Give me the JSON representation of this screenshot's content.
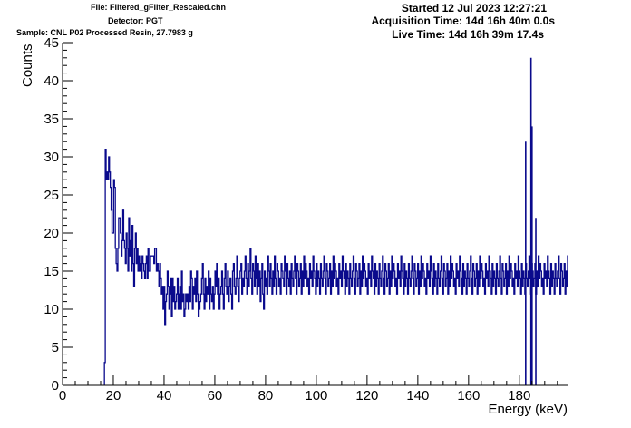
{
  "header": {
    "file": "File: Filtered_gFilter_Rescaled.chn",
    "detector": "Detector: PGT",
    "sample": "Sample: CNL P02 Processed Resin, 27.7983 g",
    "started": "Started 12 Jul 2023 12:27:21",
    "acquisition": "Acquisition Time: 14d 16h 40m 0.0s",
    "live": "Live Time: 14d 16h 39m 17.4s"
  },
  "colors": {
    "series": "#0a0a8c",
    "axis": "#000000",
    "background": "#ffffff"
  },
  "chart_data": {
    "type": "line",
    "style": "step-histogram",
    "title": "",
    "xlabel": "Energy (keV)",
    "ylabel": "Counts",
    "xlim": [
      0,
      199
    ],
    "ylim": [
      0,
      45
    ],
    "grid": false,
    "legend": "none",
    "xticks": [
      0,
      20,
      40,
      60,
      80,
      100,
      120,
      140,
      160,
      180
    ],
    "yticks": [
      0,
      5,
      10,
      15,
      20,
      25,
      30,
      35,
      40,
      45
    ],
    "bin_width_keV": 0.33,
    "x_start_keV": 16.5,
    "series": [
      {
        "values": [
          3,
          31,
          27,
          28,
          27,
          30,
          28,
          26,
          23,
          20,
          20,
          27,
          26,
          18,
          16,
          15,
          18,
          22,
          22,
          20,
          17,
          19,
          23,
          19,
          18,
          16,
          20,
          18,
          15,
          22,
          17,
          19,
          15,
          21,
          16,
          13,
          18,
          20,
          16,
          18,
          15,
          17,
          15,
          16,
          14,
          17,
          16,
          15,
          14,
          16,
          17,
          14,
          18,
          15,
          15,
          17,
          17,
          17,
          17,
          16,
          18,
          18,
          15,
          16,
          15,
          13,
          16,
          14,
          12,
          13,
          10,
          13,
          8,
          11,
          12,
          15,
          13,
          10,
          12,
          14,
          9,
          14,
          11,
          13,
          10,
          11,
          12,
          14,
          10,
          12,
          13,
          10,
          15,
          11,
          12,
          9,
          10,
          12,
          11,
          12,
          10,
          13,
          11,
          15,
          14,
          10,
          13,
          12,
          14,
          11,
          15,
          12,
          9,
          10,
          11,
          12,
          14,
          16,
          12,
          10,
          14,
          11,
          13,
          12,
          15,
          10,
          14,
          12,
          11,
          13,
          10,
          12,
          15,
          13,
          16,
          12,
          14,
          10,
          12,
          13,
          15,
          12,
          10,
          14,
          16,
          13,
          12,
          15,
          11,
          13,
          14,
          12,
          10,
          15,
          16,
          13,
          12,
          14,
          17,
          13,
          11,
          14,
          15,
          16,
          12,
          14,
          13,
          15,
          17,
          14,
          12,
          16,
          13,
          15,
          18,
          14,
          12,
          16,
          15,
          13,
          17,
          14,
          12,
          16,
          13,
          15,
          11,
          14,
          16,
          12,
          10,
          15,
          13,
          14,
          12,
          17,
          15,
          13,
          16,
          14,
          12,
          15,
          13,
          17,
          14,
          12,
          16,
          15,
          13,
          14,
          12,
          16,
          15,
          14,
          13,
          17,
          15,
          12,
          16,
          14,
          13,
          15,
          12,
          16,
          14,
          13,
          15,
          17,
          14,
          12,
          16,
          15,
          13,
          14,
          16,
          12,
          15,
          13,
          17,
          14,
          16,
          15,
          13,
          14,
          12,
          16,
          14,
          15,
          13,
          17,
          15,
          14,
          12,
          16,
          13,
          15,
          14,
          12,
          16,
          14,
          13,
          15,
          17,
          14,
          12,
          16,
          15,
          13,
          14,
          16,
          12,
          15,
          13,
          17,
          14,
          16,
          15,
          13,
          14,
          12,
          16,
          14,
          15,
          13,
          17,
          15,
          14,
          12,
          16,
          13,
          15,
          14,
          12,
          16,
          14,
          13,
          15,
          17,
          14,
          12,
          16,
          15,
          13,
          14,
          16,
          12,
          15,
          13,
          17,
          14,
          16,
          15,
          13,
          14,
          12,
          16,
          14,
          15,
          13,
          17,
          15,
          14,
          12,
          16,
          13,
          15,
          14,
          12,
          16,
          14,
          13,
          15,
          17,
          14,
          12,
          16,
          15,
          13,
          14,
          16,
          12,
          15,
          13,
          17,
          14,
          16,
          15,
          13,
          14,
          12,
          16,
          14,
          15,
          13,
          17,
          15,
          14,
          12,
          16,
          13,
          15,
          14,
          12,
          16,
          14,
          13,
          15,
          17,
          14,
          12,
          16,
          15,
          13,
          14,
          16,
          12,
          15,
          13,
          17,
          14,
          16,
          15,
          13,
          14,
          12,
          16,
          14,
          15,
          13,
          17,
          15,
          14,
          12,
          16,
          13,
          15,
          14,
          12,
          16,
          14,
          13,
          15,
          17,
          14,
          12,
          16,
          15,
          13,
          14,
          16,
          12,
          15,
          13,
          17,
          14,
          16,
          15,
          13,
          14,
          12,
          16,
          14,
          15,
          13,
          17,
          15,
          14,
          12,
          16,
          13,
          15,
          14,
          12,
          16,
          14,
          13,
          15,
          17,
          14,
          12,
          16,
          15,
          13,
          14,
          16,
          12,
          15,
          13,
          17,
          14,
          16,
          15,
          13,
          14,
          12,
          16,
          14,
          15,
          13,
          17,
          15,
          14,
          12,
          16,
          13,
          15,
          14,
          12,
          16,
          14,
          13,
          15,
          17,
          14,
          12,
          16,
          15,
          13,
          14,
          16,
          12,
          15,
          13,
          17,
          14,
          16,
          15,
          13,
          14,
          12,
          16,
          14,
          15,
          13,
          17,
          15,
          14,
          12,
          16,
          13,
          15,
          14,
          12,
          16,
          14,
          13,
          15,
          17,
          14,
          12,
          16,
          15,
          13,
          14,
          16,
          12,
          15,
          13,
          17,
          14,
          16,
          15,
          13,
          14,
          12,
          16,
          14,
          15,
          13,
          17,
          15,
          14,
          12,
          16,
          13,
          15,
          14,
          12,
          16,
          14,
          13,
          15,
          17,
          14,
          12,
          16,
          15,
          13,
          14,
          16,
          12,
          15,
          13,
          17,
          14
        ]
      }
    ],
    "features": [
      {
        "x": 184.6,
        "y": 43
      },
      {
        "x": 185.0,
        "y": 34
      },
      {
        "x": 182.5,
        "y": 32
      },
      {
        "x": 186.5,
        "y": 22
      }
    ]
  }
}
